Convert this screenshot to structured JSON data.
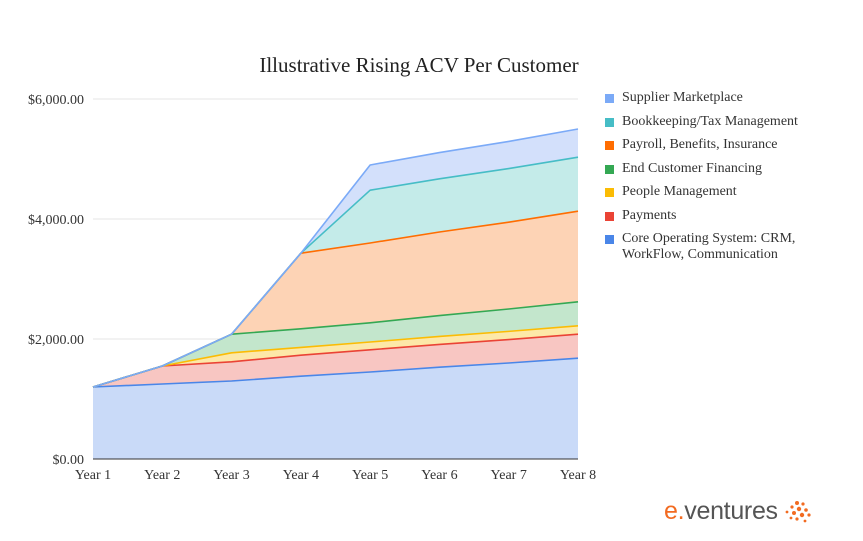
{
  "chart_data": {
    "type": "area",
    "stacked": true,
    "title": "Illustrative Rising ACV Per Customer",
    "xlabel": "",
    "ylabel": "",
    "categories": [
      "Year 1",
      "Year 2",
      "Year 3",
      "Year 4",
      "Year 5",
      "Year 6",
      "Year 7",
      "Year 8"
    ],
    "ylim": [
      0,
      6000
    ],
    "yticks": [
      0,
      2000,
      4000,
      6000
    ],
    "ytick_labels": [
      "$0.00",
      "$2,000.00",
      "$4,000.00",
      "$6,000.00"
    ],
    "grid": true,
    "legend_position": "right",
    "series": [
      {
        "name": "Core Operating System: CRM, WorkFlow, Communication",
        "color": "#4a86e8",
        "fill": "#c9daf8",
        "values": [
          1200,
          1250,
          1300,
          1380,
          1450,
          1530,
          1600,
          1680
        ]
      },
      {
        "name": "Payments",
        "color": "#ea4335",
        "fill": "#f8c6c2",
        "values": [
          0,
          300,
          320,
          350,
          370,
          380,
          390,
          400
        ]
      },
      {
        "name": "People Management",
        "color": "#fbbc04",
        "fill": "#fde8a8",
        "values": [
          0,
          0,
          150,
          130,
          130,
          133,
          137,
          140
        ]
      },
      {
        "name": "End Customer Financing",
        "color": "#34a853",
        "fill": "#c3e6cc",
        "values": [
          0,
          0,
          310,
          310,
          320,
          347,
          373,
          400
        ]
      },
      {
        "name": "Payroll, Benefits, Insurance",
        "color": "#ff6d01",
        "fill": "#fdd3b5",
        "values": [
          0,
          0,
          0,
          1260,
          1330,
          1393,
          1447,
          1510
        ]
      },
      {
        "name": "Bookkeeping/Tax Management",
        "color": "#46bdc6",
        "fill": "#c4ebe9",
        "values": [
          0,
          0,
          0,
          0,
          880,
          887,
          893,
          900
        ]
      },
      {
        "name": "Supplier Marketplace",
        "color": "#7baaf7",
        "fill": "#d3e0fb",
        "values": [
          0,
          0,
          0,
          0,
          420,
          437,
          453,
          470
        ]
      }
    ]
  },
  "legend": {
    "items": [
      {
        "label": "Supplier Marketplace",
        "color": "#7baaf7"
      },
      {
        "label": "Bookkeeping/Tax Management",
        "color": "#46bdc6"
      },
      {
        "label": "Payroll, Benefits, Insurance",
        "color": "#ff6d01"
      },
      {
        "label": "End Customer Financing",
        "color": "#34a853"
      },
      {
        "label": "People Management",
        "color": "#fbbc04"
      },
      {
        "label": "Payments",
        "color": "#ea4335"
      },
      {
        "label": "Core Operating System: CRM, WorkFlow, Communication",
        "color": "#4a86e8"
      }
    ]
  },
  "logo": {
    "prefix": "e",
    "dot": ".",
    "name": "ventures",
    "color": "#f26b21"
  }
}
